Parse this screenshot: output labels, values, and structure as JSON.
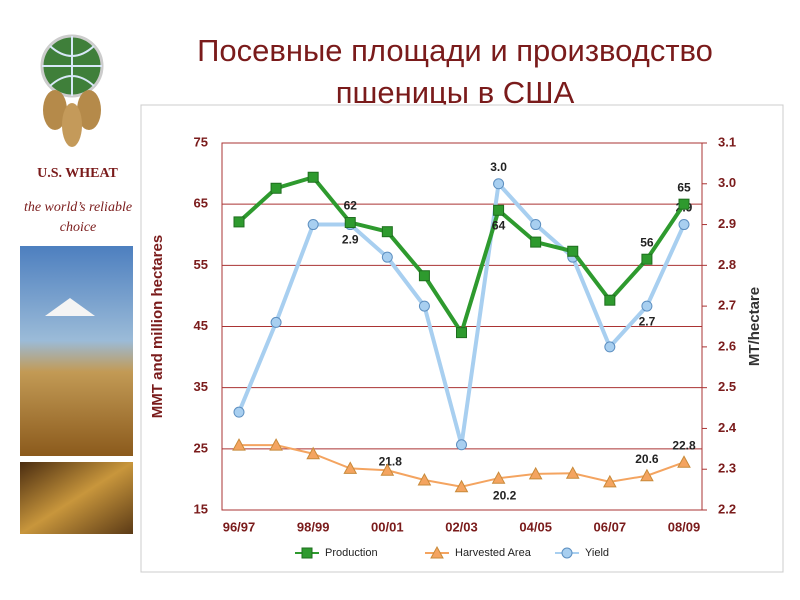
{
  "header": {
    "title": "Посевные площади и производство пшеницы в США"
  },
  "sidebar": {
    "brand": "U.S. WHEAT",
    "tagline": "the world’s reliable choice"
  },
  "chart_data": {
    "type": "line",
    "categories": [
      "96/97",
      null,
      "98/99",
      null,
      "00/01",
      null,
      "02/03",
      null,
      "04/05",
      null,
      "06/07",
      null,
      "08/09"
    ],
    "y_label": "MMT and million hectares",
    "y2_label": "MT/hectare",
    "ylim": [
      15,
      75
    ],
    "yticks": [
      15,
      25,
      35,
      45,
      55,
      65,
      75
    ],
    "y2lim": [
      2.2,
      3.1
    ],
    "y2ticks": [
      2.2,
      2.3,
      2.4,
      2.5,
      2.6,
      2.7,
      2.8,
      2.9,
      {
        "value": 3,
        "label": "3.0"
      },
      3.1
    ],
    "grid": true,
    "legend": "bottom",
    "series": [
      {
        "name": "Production",
        "color": "#2e9a2e",
        "marker": "square",
        "values": [
          62.1,
          67.6,
          69.4,
          62,
          60.5,
          53.3,
          44,
          64,
          58.8,
          57.3,
          49.3,
          56,
          65
        ],
        "value_labels": [
          null,
          null,
          null,
          "62",
          null,
          null,
          null,
          "64",
          null,
          null,
          null,
          "56",
          "65"
        ]
      },
      {
        "name": "Harvested Area",
        "color": "#f4a460",
        "marker": "triangle",
        "values": [
          25.6,
          25.6,
          24.2,
          21.8,
          21.5,
          19.9,
          18.8,
          20.2,
          20.9,
          21,
          19.6,
          20.6,
          22.8
        ],
        "value_labels": [
          null,
          null,
          null,
          "21.8",
          null,
          null,
          null,
          "20.2",
          null,
          null,
          null,
          "20.6",
          "22.8"
        ]
      },
      {
        "name": "Yield",
        "color": "#a8cff0",
        "marker": "circle",
        "axis": "y2",
        "values": [
          2.44,
          2.66,
          2.9,
          2.9,
          2.82,
          2.7,
          2.36,
          3,
          2.9,
          2.82,
          2.6,
          2.7,
          2.9
        ],
        "value_labels": [
          null,
          null,
          null,
          "2.9",
          null,
          null,
          null,
          "3.0",
          null,
          null,
          null,
          "2.7",
          "2.9"
        ]
      }
    ]
  }
}
